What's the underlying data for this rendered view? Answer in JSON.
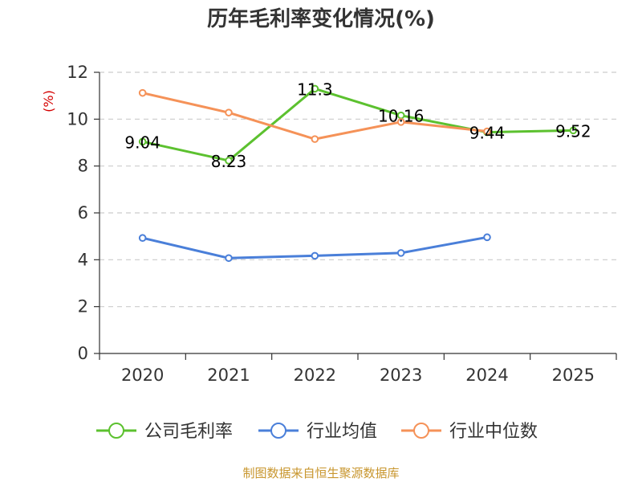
{
  "chart_data": {
    "type": "line",
    "title": "历年毛利率变化情况(%)",
    "y_unit": "(%)",
    "categories": [
      "2020",
      "2021",
      "2022",
      "2023",
      "2024",
      "2025"
    ],
    "ylim": [
      0,
      12
    ],
    "yticks": [
      0,
      2,
      4,
      6,
      8,
      10,
      12
    ],
    "grid": true,
    "legend_position": "bottom",
    "series": [
      {
        "name": "公司毛利率",
        "color": "#5cc12f",
        "values": [
          9.04,
          8.23,
          11.3,
          10.16,
          9.44,
          9.52
        ],
        "labels": [
          "9.04",
          "8.23",
          "11.3",
          "10.16",
          "9.44",
          "9.52"
        ]
      },
      {
        "name": "行业均值",
        "color": "#4a7fd9",
        "values": [
          4.93,
          4.07,
          4.17,
          4.29,
          4.96,
          null
        ]
      },
      {
        "name": "行业中位数",
        "color": "#f59258",
        "values": [
          11.12,
          10.28,
          9.15,
          9.88,
          9.48,
          null
        ]
      }
    ],
    "source": "制图数据来自恒生聚源数据库"
  }
}
